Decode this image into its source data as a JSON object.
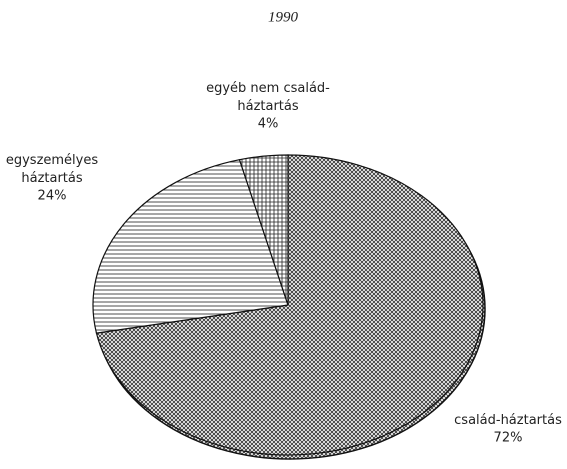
{
  "chart_data": {
    "type": "pie",
    "title": "1990",
    "categories": [
      "család-háztartás",
      "egyszemélyes\nháztartás",
      "egyéb nem család-\nháztartás"
    ],
    "values": [
      72,
      24,
      4
    ],
    "value_labels": [
      "72%",
      "24%",
      "4%"
    ]
  }
}
